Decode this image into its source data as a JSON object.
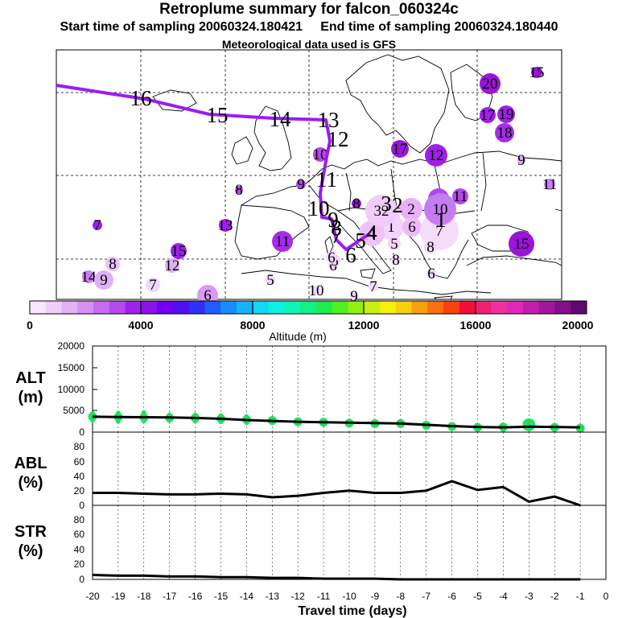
{
  "header": {
    "title": "Retroplume summary for falcon_060324c",
    "start_label": "Start time of sampling 20060324.180421",
    "end_label": "End time of sampling 20060324.180440",
    "meteo_label": "Meteorological data used is GFS"
  },
  "colors": {
    "track": "#9b1cf5",
    "altitude_marker": "#22e05a",
    "line": "#000000",
    "grid": "#000000"
  },
  "map": {
    "track_labels": [
      "16",
      "15",
      "14",
      "13",
      "12",
      "11",
      "10",
      "9",
      "8",
      "7",
      "6",
      "5",
      "4",
      "3",
      "2",
      "1"
    ],
    "clusters": [
      {
        "label": "20",
        "size": 13,
        "color": "#9b14d8"
      },
      {
        "label": "15",
        "size": 7,
        "color": "#9b14d8"
      },
      {
        "label": "17",
        "size": 10,
        "color": "#a020e8"
      },
      {
        "label": "19",
        "size": 11,
        "color": "#a020e8"
      },
      {
        "label": "18",
        "size": 12,
        "color": "#a62cea"
      },
      {
        "label": "9",
        "size": 5,
        "color": "#d8a8f0"
      },
      {
        "label": "17",
        "size": 11,
        "color": "#9b14d8"
      },
      {
        "label": "12",
        "size": 14,
        "color": "#a020e8"
      },
      {
        "label": "11",
        "size": 7,
        "color": "#c87ef0"
      },
      {
        "label": "16",
        "size": 13,
        "color": "#b248ec"
      },
      {
        "label": "11",
        "size": 10,
        "color": "#b248ec"
      },
      {
        "label": "15",
        "size": 16,
        "color": "#9b14d8"
      },
      {
        "label": "10",
        "size": 9,
        "color": "#b248ec"
      },
      {
        "label": "8",
        "size": 5,
        "color": "#b248ec"
      },
      {
        "label": "9",
        "size": 6,
        "color": "#b248ec"
      },
      {
        "label": "8",
        "size": 6,
        "color": "#9b14d8"
      },
      {
        "label": "7",
        "size": 6,
        "color": "#a020e8"
      },
      {
        "label": "13",
        "size": 8,
        "color": "#a020e8"
      },
      {
        "label": "11",
        "size": 13,
        "color": "#a62cea"
      },
      {
        "label": "15",
        "size": 10,
        "color": "#a020e8"
      },
      {
        "label": "12",
        "size": 9,
        "color": "#e0b0f5"
      },
      {
        "label": "8",
        "size": 9,
        "color": "#e8c0f8"
      },
      {
        "label": "14",
        "size": 8,
        "color": "#c87ef0"
      },
      {
        "label": "9",
        "size": 12,
        "color": "#e0b0f5"
      },
      {
        "label": "7",
        "size": 9,
        "color": "#f0d8fb"
      },
      {
        "label": "6",
        "size": 13,
        "color": "#d99af3"
      },
      {
        "label": "5",
        "size": 6,
        "color": "#f0d8fb"
      },
      {
        "label": "10",
        "size": 6,
        "color": "#f0d8fb"
      },
      {
        "label": "9",
        "size": 5,
        "color": "#f0d8fb"
      },
      {
        "label": "7",
        "size": 6,
        "color": "#f0d8fb"
      },
      {
        "label": "6",
        "size": 6,
        "color": "#f0d8fb"
      },
      {
        "label": "8",
        "size": 6,
        "color": "#f0d8fb"
      },
      {
        "label": "3",
        "size": 17,
        "color": "#f2c8fa"
      },
      {
        "label": "2",
        "size": 14,
        "color": "#e8b0f6"
      },
      {
        "label": "1",
        "size": 16,
        "color": "#f4d4fb"
      },
      {
        "label": "6",
        "size": 12,
        "color": "#ebbaf7"
      },
      {
        "label": "5",
        "size": 8,
        "color": "#f4d4fb"
      },
      {
        "label": "4",
        "size": 16,
        "color": "#eec2f8"
      },
      {
        "label": "7",
        "size": 24,
        "color": "#f6dcfb"
      },
      {
        "label": "8",
        "size": 8,
        "color": "#f4d4fb"
      },
      {
        "label": "10",
        "size": 20,
        "color": "#c67cf0"
      },
      {
        "label": "6",
        "size": 6,
        "color": "#f4d4fb"
      },
      {
        "label": "5",
        "size": 7,
        "color": "#f4d4fb"
      },
      {
        "label": "6",
        "size": 7,
        "color": "#f0d8fb"
      },
      {
        "label": "32",
        "size": 20,
        "color": "#f0ccfa"
      }
    ]
  },
  "colorbar": {
    "ticks": [
      "0",
      "4000",
      "8000",
      "12000",
      "16000",
      "20000"
    ],
    "label": "Altitude (m)",
    "colors": [
      "#f7e6fb",
      "#efcef8",
      "#e4b0f5",
      "#d690f2",
      "#c66cef",
      "#b44aec",
      "#a020ea",
      "#8c10e8",
      "#7000ee",
      "#5010f0",
      "#3030f4",
      "#1f5ef8",
      "#1a8cfa",
      "#14b4f8",
      "#10d8f4",
      "#10f0e0",
      "#10f4b8",
      "#14f088",
      "#20ec50",
      "#50f020",
      "#90f010",
      "#c8f010",
      "#f4f010",
      "#f8d010",
      "#f8a010",
      "#f87010",
      "#f84010",
      "#f01038",
      "#f02070",
      "#f030a0",
      "#e028b8",
      "#c020a8",
      "#a01898",
      "#801088",
      "#600870"
    ]
  },
  "chart_data": [
    {
      "name": "ALT",
      "type": "line",
      "ylabel": "ALT\n(m)",
      "ylabel_line1": "ALT",
      "ylabel_line2": "(m)",
      "ylim": [
        0,
        20000
      ],
      "yticks": [
        "0",
        "5000",
        "10000",
        "15000",
        "20000"
      ],
      "x": [
        -20,
        -19,
        -18,
        -17,
        -16,
        -15,
        -14,
        -13,
        -12,
        -11,
        -10,
        -9,
        -8,
        -7,
        -6,
        -5,
        -4,
        -3,
        -2,
        -1
      ],
      "values": [
        3600,
        3500,
        3450,
        3400,
        3300,
        3100,
        2800,
        2600,
        2400,
        2300,
        2200,
        2100,
        2000,
        1700,
        1400,
        1200,
        1100,
        1250,
        1200,
        1100
      ],
      "markers": [
        {
          "x": -20,
          "values": [
            3600,
            2800,
            4300
          ]
        },
        {
          "x": -19,
          "values": [
            3500,
            2500,
            4400
          ]
        },
        {
          "x": -18,
          "values": [
            3400,
            2600,
            4500
          ]
        },
        {
          "x": -17,
          "values": [
            3300,
            2700,
            4000
          ]
        },
        {
          "x": -16,
          "values": [
            3300,
            2600,
            4000
          ]
        },
        {
          "x": -15,
          "values": [
            3100,
            2400,
            3800
          ]
        },
        {
          "x": -14,
          "values": [
            2900,
            2200,
            3600
          ]
        },
        {
          "x": -13,
          "values": [
            2700,
            2200
          ]
        },
        {
          "x": -12,
          "values": [
            2400,
            2000
          ]
        },
        {
          "x": -11,
          "values": [
            2300,
            2100
          ]
        },
        {
          "x": -10,
          "values": [
            2100,
            1800
          ]
        },
        {
          "x": -9,
          "values": [
            2000,
            1800
          ]
        },
        {
          "x": -8,
          "values": [
            2000
          ]
        },
        {
          "x": -7,
          "values": [
            1600
          ]
        },
        {
          "x": -6,
          "values": [
            1300
          ]
        },
        {
          "x": -5,
          "values": [
            1100
          ]
        },
        {
          "x": -4,
          "values": [
            1200,
            500
          ]
        },
        {
          "x": -3,
          "values": [
            1800,
            1100
          ]
        },
        {
          "x": -2,
          "values": [
            1100
          ]
        },
        {
          "x": -1,
          "values": [
            900
          ]
        }
      ]
    },
    {
      "name": "ABL",
      "type": "line",
      "ylabel_line1": "ABL",
      "ylabel_line2": "(%)",
      "ylim": [
        0,
        100
      ],
      "yticks": [
        "0",
        "20",
        "40",
        "60",
        "80"
      ],
      "x": [
        -20,
        -19,
        -18,
        -17,
        -16,
        -15,
        -14,
        -13,
        -12,
        -11,
        -10,
        -9,
        -8,
        -7,
        -6,
        -5,
        -4,
        -3,
        -2,
        -1
      ],
      "values": [
        17,
        17,
        16,
        15,
        15,
        16,
        15,
        11,
        13,
        17,
        20,
        17,
        17,
        20,
        33,
        21,
        25,
        5,
        12,
        0
      ]
    },
    {
      "name": "STR",
      "type": "line",
      "ylabel_line1": "STR",
      "ylabel_line2": "(%)",
      "ylim": [
        0,
        100
      ],
      "yticks": [
        "0",
        "20",
        "40",
        "60",
        "80"
      ],
      "x": [
        -20,
        -19,
        -18,
        -17,
        -16,
        -15,
        -14,
        -13,
        -12,
        -11,
        -10,
        -9,
        -8,
        -7,
        -6,
        -5,
        -4,
        -3,
        -2,
        -1
      ],
      "values": [
        6,
        5,
        5,
        4,
        4,
        3,
        3,
        2,
        2,
        1,
        1,
        1,
        0,
        0,
        0,
        0,
        0,
        0,
        0,
        0
      ]
    }
  ],
  "xaxis": {
    "ticks": [
      "-20",
      "-19",
      "-18",
      "-17",
      "-16",
      "-15",
      "-14",
      "-13",
      "-12",
      "-11",
      "-10",
      "-9",
      "-8",
      "-7",
      "-6",
      "-5",
      "-4",
      "-3",
      "-2",
      "-1",
      "0"
    ],
    "label": "Travel time (days)"
  }
}
